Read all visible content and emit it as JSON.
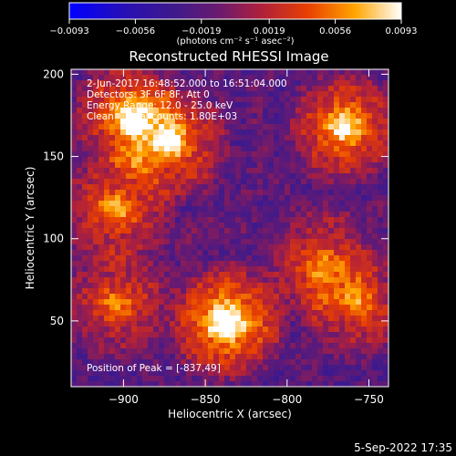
{
  "chart_data": {
    "type": "heatmap",
    "title": "Reconstructed RHESSI Image",
    "xlabel": "Heliocentric X (arcsec)",
    "ylabel": "Heliocentric Y (arcsec)",
    "xlim": [
      -932,
      -738
    ],
    "ylim": [
      10,
      203
    ],
    "x_ticks": [
      -900,
      -850,
      -800,
      -750
    ],
    "y_ticks": [
      50,
      100,
      150,
      200
    ],
    "x_tick_labels": [
      "−900",
      "−850",
      "−800",
      "−750"
    ],
    "y_tick_labels": [
      "50",
      "100",
      "150",
      "200"
    ],
    "colorbar": {
      "min": -0.0093,
      "max": 0.0093,
      "ticks": [
        -0.0093,
        -0.0056,
        -0.0019,
        0.0019,
        0.0056,
        0.0093
      ],
      "tick_labels": [
        "−0.0093",
        "−0.0056",
        "−0.0019",
        "0.0019",
        "0.0056",
        "0.0093"
      ],
      "units_label": "(photons cm⁻² s⁻¹ asec⁻²)",
      "colors": [
        "#0000ff",
        "#2a10a0",
        "#4a1a8a",
        "#8a1a5a",
        "#c81e1e",
        "#f05a00",
        "#ffb000",
        "#ffffff"
      ]
    },
    "sources": [
      {
        "x": -837,
        "y": 49,
        "peak": 1.0
      },
      {
        "x": -897,
        "y": 175,
        "peak": 0.75
      },
      {
        "x": -765,
        "y": 168,
        "peak": 0.85
      },
      {
        "x": -870,
        "y": 158,
        "peak": 0.7
      },
      {
        "x": -905,
        "y": 118,
        "peak": 0.6
      },
      {
        "x": -780,
        "y": 85,
        "peak": 0.55
      },
      {
        "x": -905,
        "y": 60,
        "peak": 0.55
      },
      {
        "x": -755,
        "y": 60,
        "peak": 0.55
      }
    ],
    "annotations": [
      "2-Jun-2017 16:48:52.000 to 16:51:04.000",
      "Detectors: 3F 6F 8F, Att 0",
      "Energy Range: 12.0 - 25.0 keV",
      "Clean    Total counts: 1.80E+03"
    ],
    "peak_label": "Position of Peak = [-837,49]",
    "footer_timestamp": "5-Sep-2022 17:35"
  }
}
